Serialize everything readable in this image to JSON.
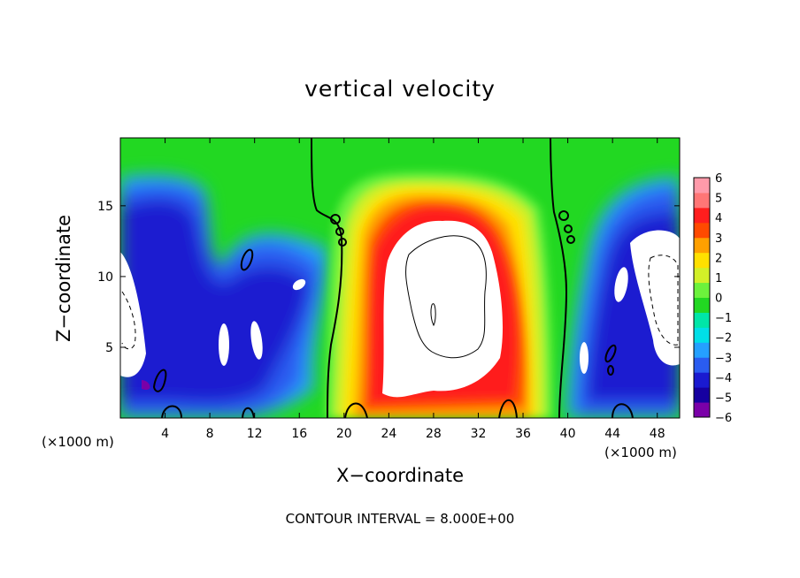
{
  "chart_data": {
    "type": "heatmap",
    "title": "vertical velocity",
    "xlabel": "X−coordinate",
    "ylabel": "Z−coordinate",
    "x_unit": "(×1000 m)",
    "x_ticks": [
      4,
      8,
      12,
      16,
      20,
      24,
      28,
      32,
      36,
      40,
      44,
      48
    ],
    "y_ticks": [
      5,
      10,
      15
    ],
    "xlim": [
      0,
      50
    ],
    "ylim": [
      0,
      19.8
    ],
    "colorbar": {
      "ticks": [
        6,
        5,
        4,
        3,
        2,
        1,
        0,
        -1,
        -2,
        -3,
        -4,
        -5,
        -6
      ],
      "tick_labels": [
        "6",
        "5",
        "4",
        "3",
        "2",
        "1",
        "0",
        "−1",
        "−2",
        "−3",
        "−4",
        "−5",
        "−6"
      ],
      "range": [
        -6,
        6
      ],
      "colors": [
        "#7a00a8",
        "#1600a0",
        "#1a1ad0",
        "#2a5cf0",
        "#25a0ff",
        "#00dfe8",
        "#00e6a8",
        "#22d822",
        "#6cf23c",
        "#d2f028",
        "#ffe000",
        "#ffa000",
        "#ff4a00",
        "#ff1e1e",
        "#ff7676",
        "#ff9aaa"
      ]
    },
    "features": [
      {
        "name": "central updraft",
        "x": [
          21,
          37
        ],
        "z": [
          0.5,
          16
        ],
        "value_range": [
          0,
          ">6"
        ]
      },
      {
        "name": "left downdraft",
        "x": [
          0,
          19
        ],
        "z": [
          0.5,
          16.5
        ],
        "value_range": [
          "<-6",
          -1
        ]
      },
      {
        "name": "right downdraft",
        "x": [
          40,
          50
        ],
        "z": [
          0.5,
          16
        ],
        "value_range": [
          "<-6",
          -1
        ]
      }
    ],
    "grid": false,
    "legend": "colorbar-right"
  },
  "footer": {
    "contour_interval": "CONTOUR INTERVAL = 8.000E+00"
  }
}
